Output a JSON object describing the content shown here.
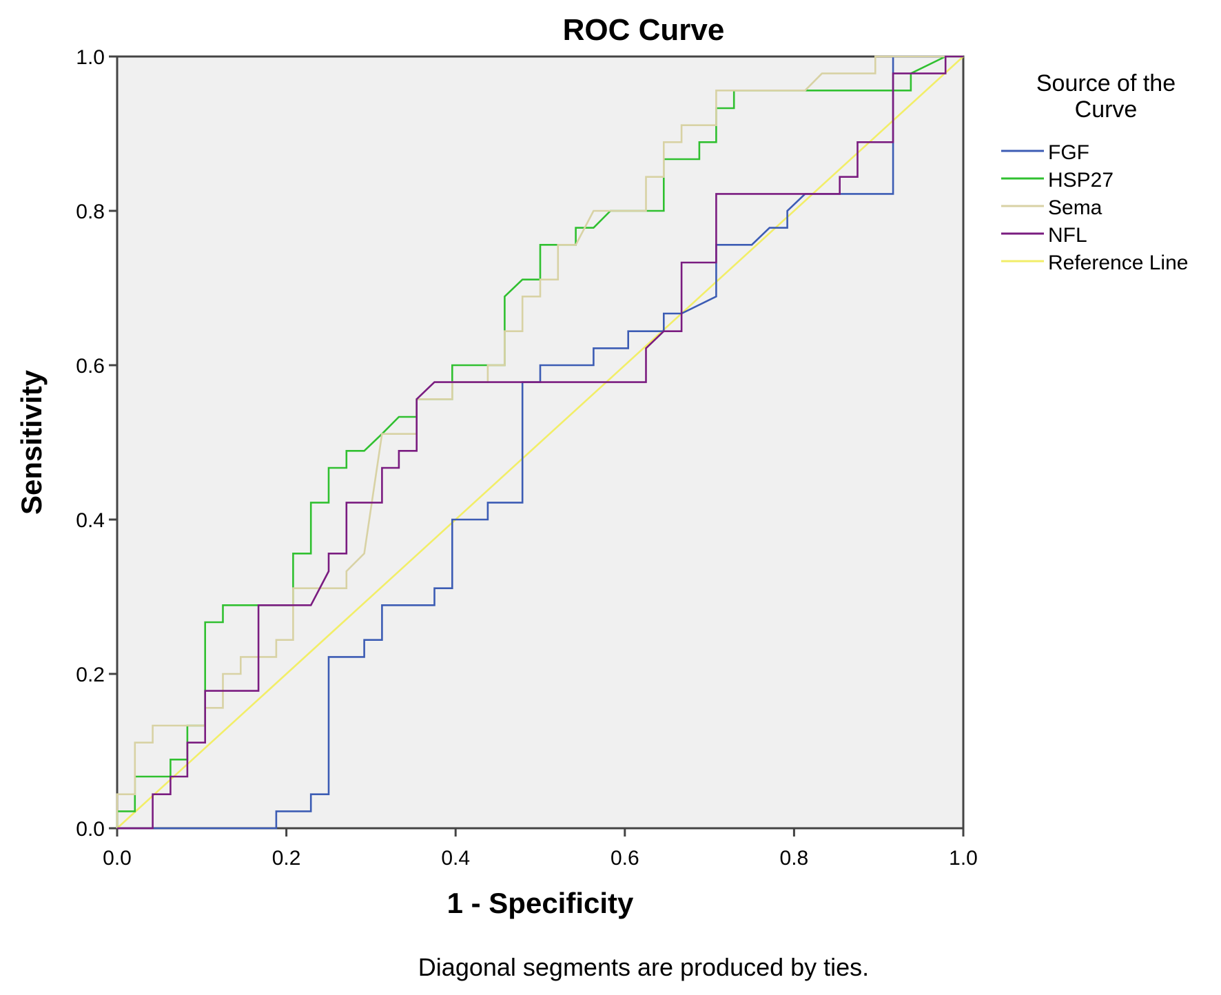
{
  "chart_data": {
    "type": "line",
    "title": "ROC Curve",
    "xlabel": "1 - Specificity",
    "ylabel": "Sensitivity",
    "xlim": [
      0,
      1
    ],
    "ylim": [
      0,
      1
    ],
    "xticks": [
      "0.0",
      "0.2",
      "0.4",
      "0.6",
      "0.8",
      "1.0"
    ],
    "yticks": [
      "0.0",
      "0.2",
      "0.4",
      "0.6",
      "0.8",
      "1.0"
    ],
    "xtick_values": [
      0,
      0.2,
      0.4,
      0.6,
      0.8,
      1.0
    ],
    "ytick_values": [
      0,
      0.2,
      0.4,
      0.6,
      0.8,
      1.0
    ],
    "legend_title": "Source of the Curve",
    "legend_position": "right",
    "footnote": "Diagonal segments are produced by ties.",
    "plot_background": "#f0f0f0",
    "series": [
      {
        "name": "FGF",
        "color": "#3c5cb4",
        "points": [
          [
            0,
            0
          ],
          [
            0.188,
            0
          ],
          [
            0.188,
            0.022
          ],
          [
            0.229,
            0.022
          ],
          [
            0.229,
            0.044
          ],
          [
            0.25,
            0.044
          ],
          [
            0.25,
            0.222
          ],
          [
            0.271,
            0.222
          ],
          [
            0.292,
            0.222
          ],
          [
            0.292,
            0.244
          ],
          [
            0.313,
            0.244
          ],
          [
            0.313,
            0.289
          ],
          [
            0.375,
            0.289
          ],
          [
            0.375,
            0.311
          ],
          [
            0.396,
            0.311
          ],
          [
            0.396,
            0.4
          ],
          [
            0.438,
            0.4
          ],
          [
            0.438,
            0.422
          ],
          [
            0.479,
            0.422
          ],
          [
            0.479,
            0.578
          ],
          [
            0.5,
            0.578
          ],
          [
            0.5,
            0.6
          ],
          [
            0.563,
            0.6
          ],
          [
            0.563,
            0.622
          ],
          [
            0.604,
            0.622
          ],
          [
            0.604,
            0.644
          ],
          [
            0.646,
            0.644
          ],
          [
            0.646,
            0.667
          ],
          [
            0.667,
            0.667
          ],
          [
            0.708,
            0.689
          ],
          [
            0.708,
            0.756
          ],
          [
            0.75,
            0.756
          ],
          [
            0.771,
            0.778
          ],
          [
            0.792,
            0.778
          ],
          [
            0.792,
            0.8
          ],
          [
            0.813,
            0.822
          ],
          [
            0.917,
            0.822
          ],
          [
            0.917,
            1.0
          ],
          [
            1.0,
            1.0
          ]
        ]
      },
      {
        "name": "HSP27",
        "color": "#30c030",
        "points": [
          [
            0,
            0
          ],
          [
            0,
            0.022
          ],
          [
            0.021,
            0.022
          ],
          [
            0.021,
            0.067
          ],
          [
            0.063,
            0.067
          ],
          [
            0.063,
            0.089
          ],
          [
            0.083,
            0.089
          ],
          [
            0.083,
            0.133
          ],
          [
            0.104,
            0.133
          ],
          [
            0.104,
            0.267
          ],
          [
            0.125,
            0.267
          ],
          [
            0.125,
            0.289
          ],
          [
            0.208,
            0.289
          ],
          [
            0.208,
            0.356
          ],
          [
            0.229,
            0.356
          ],
          [
            0.229,
            0.422
          ],
          [
            0.25,
            0.422
          ],
          [
            0.25,
            0.467
          ],
          [
            0.271,
            0.467
          ],
          [
            0.271,
            0.489
          ],
          [
            0.292,
            0.489
          ],
          [
            0.313,
            0.511
          ],
          [
            0.333,
            0.533
          ],
          [
            0.354,
            0.533
          ],
          [
            0.354,
            0.556
          ],
          [
            0.396,
            0.556
          ],
          [
            0.396,
            0.6
          ],
          [
            0.458,
            0.6
          ],
          [
            0.458,
            0.689
          ],
          [
            0.479,
            0.711
          ],
          [
            0.5,
            0.711
          ],
          [
            0.5,
            0.756
          ],
          [
            0.542,
            0.756
          ],
          [
            0.542,
            0.778
          ],
          [
            0.563,
            0.778
          ],
          [
            0.583,
            0.8
          ],
          [
            0.646,
            0.8
          ],
          [
            0.646,
            0.822
          ],
          [
            0.646,
            0.867
          ],
          [
            0.688,
            0.867
          ],
          [
            0.688,
            0.889
          ],
          [
            0.708,
            0.889
          ],
          [
            0.708,
            0.933
          ],
          [
            0.729,
            0.933
          ],
          [
            0.729,
            0.956
          ],
          [
            0.938,
            0.956
          ],
          [
            0.938,
            0.978
          ],
          [
            0.979,
            1.0
          ],
          [
            1.0,
            1.0
          ]
        ]
      },
      {
        "name": "Sema",
        "color": "#d8d2a4",
        "points": [
          [
            0,
            0
          ],
          [
            0,
            0.044
          ],
          [
            0.021,
            0.044
          ],
          [
            0.021,
            0.111
          ],
          [
            0.042,
            0.111
          ],
          [
            0.042,
            0.133
          ],
          [
            0.104,
            0.133
          ],
          [
            0.104,
            0.156
          ],
          [
            0.125,
            0.156
          ],
          [
            0.125,
            0.2
          ],
          [
            0.146,
            0.2
          ],
          [
            0.146,
            0.222
          ],
          [
            0.188,
            0.222
          ],
          [
            0.188,
            0.244
          ],
          [
            0.208,
            0.244
          ],
          [
            0.208,
            0.311
          ],
          [
            0.271,
            0.311
          ],
          [
            0.271,
            0.333
          ],
          [
            0.292,
            0.356
          ],
          [
            0.313,
            0.511
          ],
          [
            0.354,
            0.511
          ],
          [
            0.354,
            0.556
          ],
          [
            0.396,
            0.556
          ],
          [
            0.396,
            0.578
          ],
          [
            0.438,
            0.578
          ],
          [
            0.438,
            0.6
          ],
          [
            0.458,
            0.6
          ],
          [
            0.458,
            0.644
          ],
          [
            0.479,
            0.644
          ],
          [
            0.479,
            0.689
          ],
          [
            0.5,
            0.689
          ],
          [
            0.5,
            0.711
          ],
          [
            0.521,
            0.711
          ],
          [
            0.521,
            0.756
          ],
          [
            0.542,
            0.756
          ],
          [
            0.563,
            0.8
          ],
          [
            0.625,
            0.8
          ],
          [
            0.625,
            0.844
          ],
          [
            0.646,
            0.844
          ],
          [
            0.646,
            0.889
          ],
          [
            0.667,
            0.889
          ],
          [
            0.667,
            0.911
          ],
          [
            0.708,
            0.911
          ],
          [
            0.708,
            0.956
          ],
          [
            0.813,
            0.956
          ],
          [
            0.833,
            0.978
          ],
          [
            0.896,
            0.978
          ],
          [
            0.896,
            1.0
          ],
          [
            1.0,
            1.0
          ]
        ]
      },
      {
        "name": "NFL",
        "color": "#7a1c80",
        "points": [
          [
            0,
            0
          ],
          [
            0.042,
            0
          ],
          [
            0.042,
            0.044
          ],
          [
            0.063,
            0.044
          ],
          [
            0.063,
            0.067
          ],
          [
            0.083,
            0.067
          ],
          [
            0.083,
            0.111
          ],
          [
            0.104,
            0.111
          ],
          [
            0.104,
            0.178
          ],
          [
            0.167,
            0.178
          ],
          [
            0.167,
            0.289
          ],
          [
            0.229,
            0.289
          ],
          [
            0.25,
            0.333
          ],
          [
            0.25,
            0.356
          ],
          [
            0.271,
            0.356
          ],
          [
            0.271,
            0.422
          ],
          [
            0.313,
            0.422
          ],
          [
            0.313,
            0.467
          ],
          [
            0.333,
            0.467
          ],
          [
            0.333,
            0.489
          ],
          [
            0.354,
            0.489
          ],
          [
            0.354,
            0.556
          ],
          [
            0.375,
            0.578
          ],
          [
            0.625,
            0.578
          ],
          [
            0.625,
            0.622
          ],
          [
            0.646,
            0.644
          ],
          [
            0.667,
            0.644
          ],
          [
            0.667,
            0.733
          ],
          [
            0.708,
            0.733
          ],
          [
            0.708,
            0.822
          ],
          [
            0.854,
            0.822
          ],
          [
            0.854,
            0.844
          ],
          [
            0.875,
            0.844
          ],
          [
            0.875,
            0.889
          ],
          [
            0.917,
            0.889
          ],
          [
            0.917,
            0.978
          ],
          [
            0.979,
            0.978
          ],
          [
            0.979,
            1.0
          ],
          [
            1.0,
            1.0
          ]
        ]
      },
      {
        "name": "Reference Line",
        "color": "#f2ee68",
        "points": [
          [
            0,
            0
          ],
          [
            1,
            1
          ]
        ]
      }
    ]
  }
}
